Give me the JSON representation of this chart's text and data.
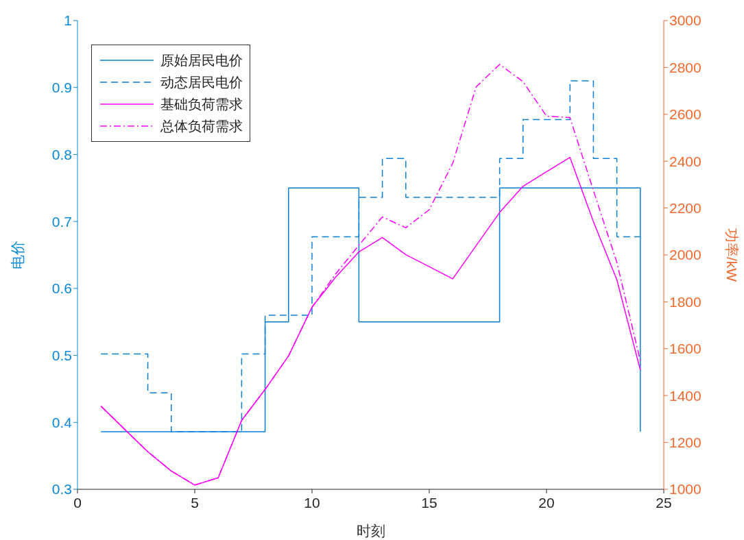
{
  "chart_data": {
    "type": "line",
    "xlabel": "时刻",
    "ylabel": "电价",
    "y2label": "功率/kW",
    "x": [
      1,
      2,
      3,
      4,
      5,
      6,
      7,
      8,
      9,
      10,
      11,
      12,
      13,
      14,
      15,
      16,
      17,
      18,
      19,
      20,
      21,
      22,
      23,
      24
    ],
    "xlim": [
      0,
      25
    ],
    "xticks": [
      0,
      5,
      10,
      15,
      20,
      25
    ],
    "ylim": [
      0.3,
      1
    ],
    "yticks": [
      0.3,
      0.4,
      0.5,
      0.6,
      0.7,
      0.8,
      0.9,
      1
    ],
    "y2lim": [
      1000,
      3000
    ],
    "y2ticks": [
      1000,
      1200,
      1400,
      1600,
      1800,
      2000,
      2200,
      2400,
      2600,
      2800,
      3000
    ],
    "legend": "top left",
    "series": [
      {
        "name": "原始居民电价",
        "type": "step",
        "color": "#0b7fd6",
        "line_style": "solid",
        "values": [
          0.386,
          0.386,
          0.386,
          0.386,
          0.386,
          0.386,
          0.386,
          0.55,
          0.75,
          0.75,
          0.75,
          0.55,
          0.55,
          0.55,
          0.55,
          0.55,
          0.55,
          0.75,
          0.75,
          0.75,
          0.75,
          0.75,
          0.75,
          0.386
        ]
      },
      {
        "name": "动态居民电价",
        "type": "step",
        "color": "#0b7fd6",
        "line_style": "dashed",
        "values": [
          0.502,
          0.502,
          0.444,
          0.386,
          0.386,
          0.386,
          0.502,
          0.56,
          0.56,
          0.677,
          0.677,
          0.736,
          0.794,
          0.736,
          0.736,
          0.736,
          0.736,
          0.794,
          0.852,
          0.852,
          0.91,
          0.794,
          0.677,
          0.677
        ]
      },
      {
        "name": "基础负荷需求",
        "axis": "y2",
        "color": "#ff00ff",
        "line_style": "solid",
        "values": [
          1355,
          1257,
          1160,
          1078,
          1018,
          1049,
          1294,
          1426,
          1569,
          1777,
          1904,
          2013,
          2074,
          2001,
          1950,
          1898,
          2040,
          2181,
          2293,
          2355,
          2416,
          2142,
          1894,
          1509
        ]
      },
      {
        "name": "总体负荷需求",
        "axis": "y2",
        "color": "#ff00ff",
        "line_style": "dashdot",
        "values": [
          1355,
          1257,
          1160,
          1078,
          1018,
          1049,
          1294,
          1426,
          1569,
          1777,
          1918,
          2041,
          2162,
          2116,
          2193,
          2391,
          2717,
          2813,
          2739,
          2592,
          2586,
          2275,
          1968,
          1548
        ]
      }
    ]
  }
}
